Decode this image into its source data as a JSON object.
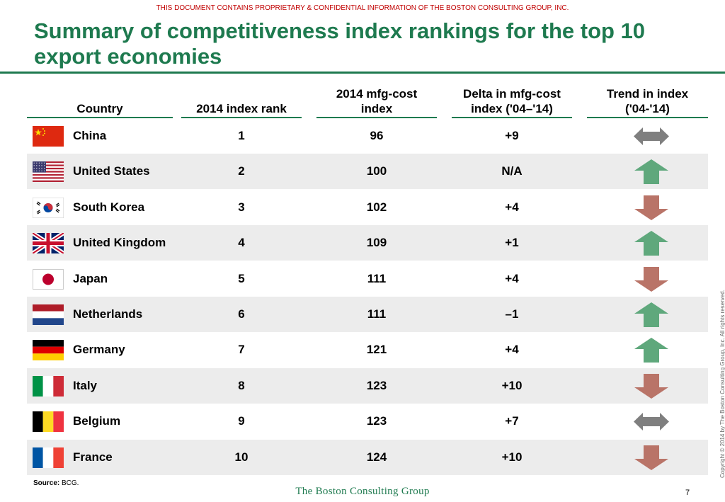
{
  "confidential": "THIS DOCUMENT CONTAINS PROPRIETARY & CONFIDENTIAL INFORMATION OF THE BOSTON CONSULTING GROUP, INC.",
  "title": "Summary of competitiveness index rankings for the top 10 export economies",
  "headers": {
    "country": "Country",
    "rank": "2014 index rank",
    "cost_line1": "2014 mfg-cost",
    "cost_line2": "index",
    "delta_line1": "Delta in mfg-cost",
    "delta_line2": "index ('04–'14)",
    "trend_line1": "Trend in index",
    "trend_line2": "('04-'14)"
  },
  "rows": [
    {
      "country": "China",
      "rank": "1",
      "cost": "96",
      "delta": "+9",
      "trend": "flat",
      "flag": "china-flag-icon"
    },
    {
      "country": "United States",
      "rank": "2",
      "cost": "100",
      "delta": "N/A",
      "trend": "up",
      "flag": "us-flag-icon"
    },
    {
      "country": "South Korea",
      "rank": "3",
      "cost": "102",
      "delta": "+4",
      "trend": "down",
      "flag": "south-korea-flag-icon"
    },
    {
      "country": "United Kingdom",
      "rank": "4",
      "cost": "109",
      "delta": "+1",
      "trend": "up",
      "flag": "uk-flag-icon"
    },
    {
      "country": "Japan",
      "rank": "5",
      "cost": "111",
      "delta": "+4",
      "trend": "down",
      "flag": "japan-flag-icon"
    },
    {
      "country": "Netherlands",
      "rank": "6",
      "cost": "111",
      "delta": "–1",
      "trend": "up",
      "flag": "netherlands-flag-icon"
    },
    {
      "country": "Germany",
      "rank": "7",
      "cost": "121",
      "delta": "+4",
      "trend": "up",
      "flag": "germany-flag-icon"
    },
    {
      "country": "Italy",
      "rank": "8",
      "cost": "123",
      "delta": "+10",
      "trend": "down",
      "flag": "italy-flag-icon"
    },
    {
      "country": "Belgium",
      "rank": "9",
      "cost": "123",
      "delta": "+7",
      "trend": "flat",
      "flag": "belgium-flag-icon"
    },
    {
      "country": "France",
      "rank": "10",
      "cost": "124",
      "delta": "+10",
      "trend": "down",
      "flag": "france-flag-icon"
    }
  ],
  "colors": {
    "title": "#1e7a4f",
    "up": "#5fa87c",
    "down": "#b97468",
    "flat": "#7f7f7f",
    "confidential": "#c00000"
  },
  "source_label": "Source:",
  "source_text": "BCG.",
  "logo": "The Boston Consulting Group",
  "page_number": "7",
  "copyright": "Copyright © 2014 by The Boston Consulting Group, Inc. All rights reserved."
}
